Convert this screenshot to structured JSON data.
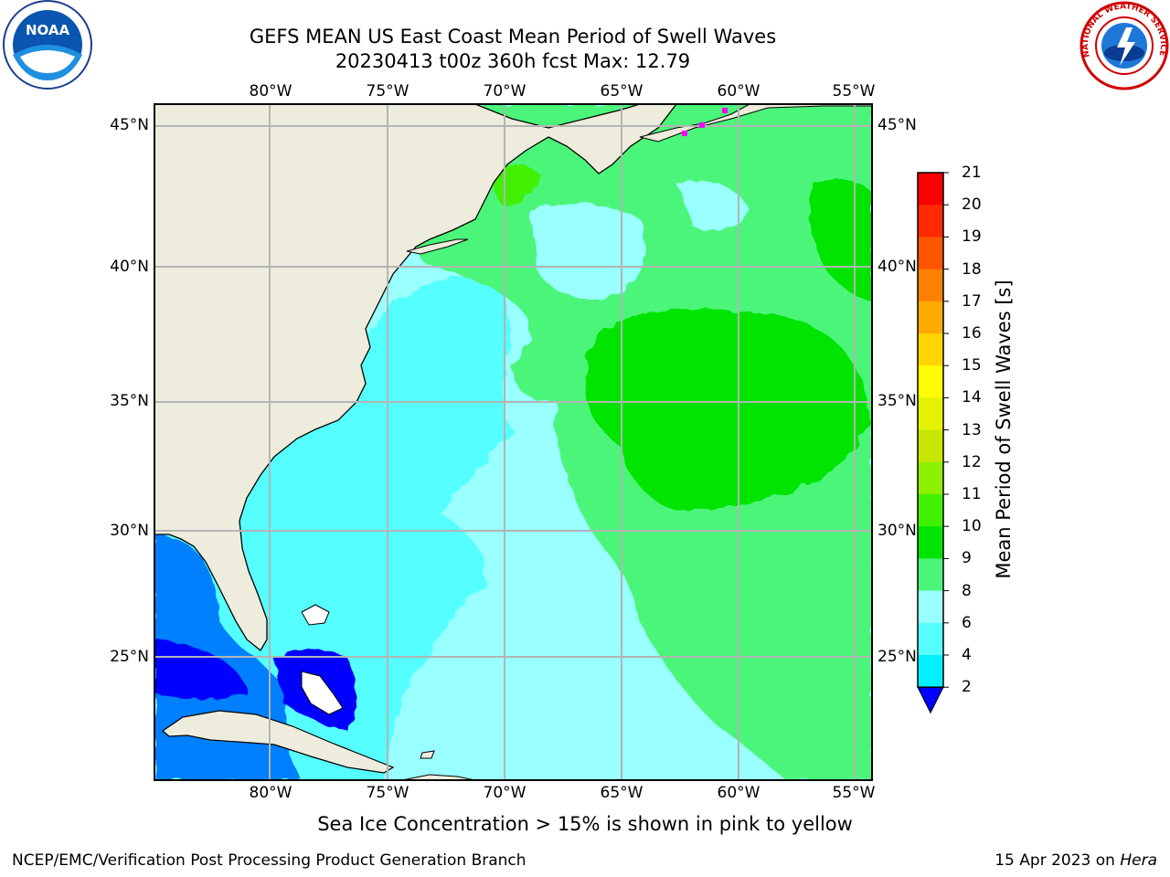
{
  "title_line1": "GEFS MEAN US East Coast Mean Period of Swell Waves",
  "title_line2": "20230413 t00z 360h fcst   Max: 12.79",
  "lon_ticks": [
    "80°W",
    "75°W",
    "70°W",
    "65°W",
    "60°W",
    "55°W"
  ],
  "lat_ticks": [
    "45°N",
    "40°N",
    "35°N",
    "30°N",
    "25°N"
  ],
  "colorbar": {
    "title": "Mean Period of Swell Waves [s]",
    "levels": [
      "21",
      "20",
      "19",
      "18",
      "17",
      "16",
      "15",
      "14",
      "13",
      "12",
      "11",
      "10",
      "9",
      "8",
      "6",
      "4",
      "2"
    ],
    "colors": [
      "#ff0000",
      "#ff2a00",
      "#ff5500",
      "#ff8000",
      "#ffaa00",
      "#ffd500",
      "#ffff00",
      "#e2f200",
      "#c6e600",
      "#8cf000",
      "#40f000",
      "#00e400",
      "#4cf57a",
      "#99ffff",
      "#55ffff",
      "#00f0ff",
      "#0080ff",
      "#0000ff"
    ]
  },
  "map": {
    "land_color": "#eeecdc",
    "grid_color": "#b4b4b4",
    "ocean_colors": {
      "swell_2_4": "#0000ff",
      "swell_4_6": "#0080ff",
      "swell_6_8": "#00f0ff",
      "swell_8_9": "#99ffff",
      "swell_9_10": "#4cf57a",
      "swell_10_11": "#00e400",
      "swell_11_12": "#40f000"
    }
  },
  "note": "Sea Ice Concentration > 15% is shown in pink to yellow",
  "footer_left": "NCEP/EMC/Verification Post Processing Product Generation Branch",
  "footer_date": "15 Apr 2023 on",
  "footer_machine": "Hera",
  "logos": {
    "left": "noaa-logo",
    "right": "nws-logo"
  },
  "noaa_logo_text": "NOAA",
  "nws_logo_text": "NATIONAL WEATHER SERVICE"
}
